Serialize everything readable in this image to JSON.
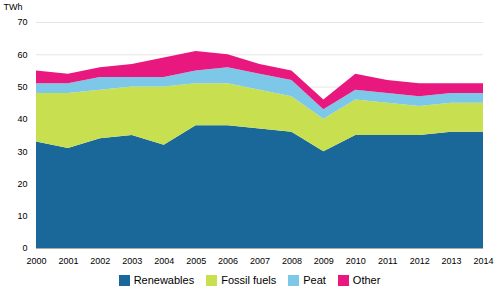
{
  "chart_data": {
    "type": "area",
    "stacked": true,
    "x": [
      2000,
      2001,
      2002,
      2003,
      2004,
      2005,
      2006,
      2007,
      2008,
      2009,
      2010,
      2011,
      2012,
      2013,
      2014
    ],
    "series": [
      {
        "name": "Renewables",
        "color": "#1a6799",
        "values": [
          33,
          31,
          34,
          35,
          32,
          38,
          38,
          37,
          36,
          30,
          35,
          35,
          35,
          36,
          36
        ]
      },
      {
        "name": "Fossil fuels",
        "color": "#c8e050",
        "values": [
          15,
          17,
          15,
          15,
          18,
          13,
          13,
          12,
          11,
          10,
          11,
          10,
          9,
          9,
          9
        ]
      },
      {
        "name": "Peat",
        "color": "#7dc8e8",
        "values": [
          3,
          3,
          4,
          3,
          3,
          4,
          5,
          5,
          5,
          3,
          3,
          3,
          3,
          3,
          3
        ]
      },
      {
        "name": "Other",
        "color": "#e8187e",
        "values": [
          4,
          3,
          3,
          4,
          6,
          6,
          4,
          3,
          3,
          3,
          5,
          4,
          4,
          3,
          3
        ]
      }
    ],
    "ylabel": "TWh",
    "xlim": [
      2000,
      2014
    ],
    "xticks": [
      2000,
      2001,
      2002,
      2003,
      2004,
      2005,
      2006,
      2007,
      2008,
      2009,
      2010,
      2011,
      2012,
      2013,
      2014
    ],
    "ylim": [
      0,
      70
    ],
    "yticks": [
      0,
      10,
      20,
      30,
      40,
      50,
      60,
      70
    ],
    "grid": true,
    "legend": "bottom"
  }
}
